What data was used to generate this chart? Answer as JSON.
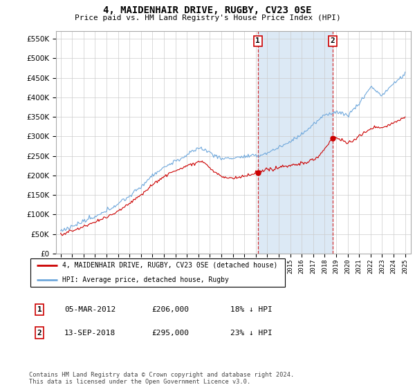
{
  "title": "4, MAIDENHAIR DRIVE, RUGBY, CV23 0SE",
  "subtitle": "Price paid vs. HM Land Registry's House Price Index (HPI)",
  "legend_line1": "4, MAIDENHAIR DRIVE, RUGBY, CV23 0SE (detached house)",
  "legend_line2": "HPI: Average price, detached house, Rugby",
  "annotation1_label": "1",
  "annotation1_date": "05-MAR-2012",
  "annotation1_price": "£206,000",
  "annotation1_hpi": "18% ↓ HPI",
  "annotation2_label": "2",
  "annotation2_date": "13-SEP-2018",
  "annotation2_price": "£295,000",
  "annotation2_hpi": "23% ↓ HPI",
  "footer": "Contains HM Land Registry data © Crown copyright and database right 2024.\nThis data is licensed under the Open Government Licence v3.0.",
  "sale1_x": 2012.17,
  "sale1_y": 206000,
  "sale2_x": 2018.7,
  "sale2_y": 295000,
  "hpi_color": "#6fa8dc",
  "property_color": "#cc0000",
  "vline_color": "#cc0000",
  "highlight_color": "#dce9f5",
  "ylim": [
    0,
    570000
  ],
  "xlim": [
    1994.6,
    2025.5
  ],
  "yticks": [
    0,
    50000,
    100000,
    150000,
    200000,
    250000,
    300000,
    350000,
    400000,
    450000,
    500000,
    550000
  ],
  "xticks": [
    1995,
    1996,
    1997,
    1998,
    1999,
    2000,
    2001,
    2002,
    2003,
    2004,
    2005,
    2006,
    2007,
    2008,
    2009,
    2010,
    2011,
    2012,
    2013,
    2014,
    2015,
    2016,
    2017,
    2018,
    2019,
    2020,
    2021,
    2022,
    2023,
    2024,
    2025
  ]
}
